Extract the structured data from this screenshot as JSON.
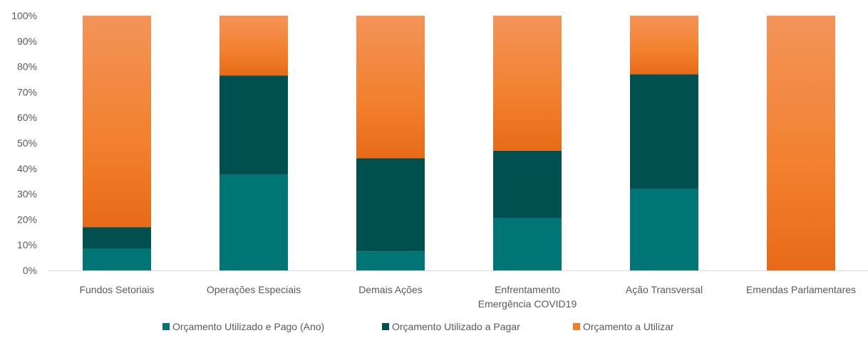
{
  "chart_data": {
    "type": "bar",
    "stacked": true,
    "percent_stacked": true,
    "categories": [
      "Fundos Setoriais",
      "Operações Especiais",
      "Demais Ações",
      "Enfrentamento\nEmergência COVID19",
      "Ação Transversal",
      "Emendas Parlamentares"
    ],
    "series": [
      {
        "name": "Orçamento Utilizado e Pago (Ano)",
        "color": "#007575",
        "values": [
          8.5,
          37.5,
          7.5,
          20.5,
          32,
          0
        ]
      },
      {
        "name": "Orçamento Utilizado a Pagar",
        "color": "#005050",
        "values": [
          8.5,
          39,
          36.5,
          26.5,
          45,
          0
        ]
      },
      {
        "name": "Orçamento a Utilizar",
        "color": "#F07F2C",
        "values": [
          83,
          23.5,
          56,
          53,
          23,
          100
        ]
      }
    ],
    "yticks": [
      "0%",
      "10%",
      "20%",
      "30%",
      "40%",
      "50%",
      "60%",
      "70%",
      "80%",
      "90%",
      "100%"
    ],
    "ylim": [
      0,
      100
    ],
    "grid": false,
    "legend_position": "bottom"
  }
}
